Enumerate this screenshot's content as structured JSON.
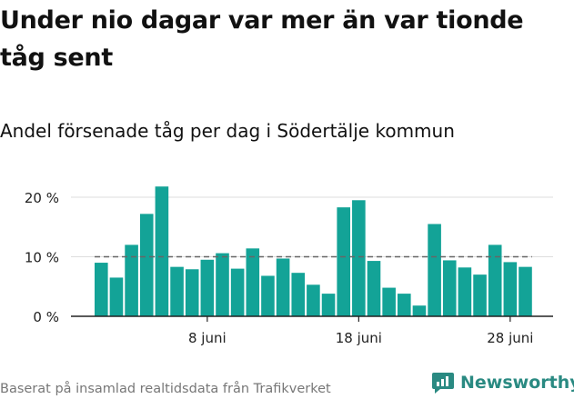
{
  "header": {
    "title": "Under nio dagar var mer än var tionde tåg sent",
    "subtitle": "Andel försenade tåg per dag i Södertälje kommun"
  },
  "footer": {
    "source": "Baserat på insamlad realtidsdata från Trafikverket",
    "brand": "Newsworthy",
    "brand_icon": "newsworthy-logo-icon"
  },
  "colors": {
    "bar": "#13a397",
    "brand": "#2a8a82",
    "reference_line": "#666666",
    "grid": "#dddddd"
  },
  "chart_data": {
    "type": "bar",
    "title": "Under nio dagar var mer än var tionde tåg sent",
    "subtitle": "Andel försenade tåg per dag i Södertälje kommun",
    "ylim": [
      0,
      23
    ],
    "y_ticks": [
      0,
      10,
      20
    ],
    "y_tick_labels": [
      "0 %",
      "10 %",
      "20 %"
    ],
    "x_ticks": [
      {
        "index": 7,
        "label": "8 juni"
      },
      {
        "index": 17,
        "label": "18 juni"
      },
      {
        "index": 27,
        "label": "28 juni"
      }
    ],
    "values": [
      9,
      6.5,
      12,
      17.2,
      21.8,
      8.3,
      7.9,
      9.5,
      10.6,
      8,
      11.4,
      6.8,
      9.7,
      7.3,
      5.3,
      3.8,
      18.3,
      19.5,
      9.3,
      4.8,
      3.8,
      1.8,
      15.5,
      9.4,
      8.2,
      7,
      12,
      9.1,
      8.3
    ],
    "reference_value": 10,
    "grid": true
  }
}
